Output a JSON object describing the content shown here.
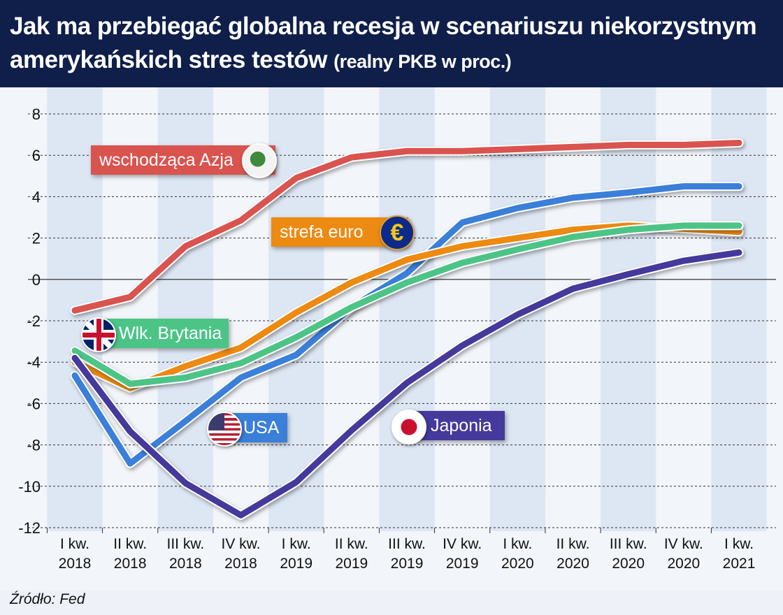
{
  "header": {
    "title": "Jak ma przebiegać globalna recesja w scenariuszu niekorzystnym amerykańskich stres testów",
    "subtitle": "(realny PKB w proc.)"
  },
  "source": "Źródło: Fed",
  "chart_data": {
    "type": "line",
    "title": "Jak ma przebiegać globalna recesja w scenariuszu niekorzystnym amerykańskich stres testów",
    "subtitle": "(realny PKB w proc.)",
    "ylim": [
      -12,
      8
    ],
    "yticks": [
      8,
      6,
      4,
      2,
      0,
      -2,
      -4,
      -6,
      -8,
      -10,
      -12
    ],
    "grid": true,
    "categories": [
      [
        "I kw.",
        "2018"
      ],
      [
        "II kw.",
        "2018"
      ],
      [
        "III kw.",
        "2018"
      ],
      [
        "IV kw.",
        "2018"
      ],
      [
        "I kw.",
        "2019"
      ],
      [
        "II kw.",
        "2019"
      ],
      [
        "III kw.",
        "2019"
      ],
      [
        "IV kw.",
        "2019"
      ],
      [
        "I kw.",
        "2020"
      ],
      [
        "II kw.",
        "2020"
      ],
      [
        "III kw.",
        "2020"
      ],
      [
        "IV kw.",
        "2020"
      ],
      [
        "I kw.",
        "2021"
      ]
    ],
    "series": [
      {
        "name": "wschodząca Azja",
        "color": "#d9534f",
        "icon": "asia-globe-icon",
        "values": [
          -1.5,
          -0.85,
          1.6,
          2.85,
          4.9,
          5.9,
          6.2,
          6.2,
          6.3,
          6.4,
          6.5,
          6.5,
          6.6
        ]
      },
      {
        "name": "USA",
        "color": "#3a7fd9",
        "icon": "us-flag-icon",
        "values": [
          -4.65,
          -8.9,
          -6.85,
          -4.75,
          -3.65,
          -1.35,
          0.3,
          2.75,
          3.45,
          3.95,
          4.2,
          4.5,
          4.5
        ]
      },
      {
        "name": "strefa euro",
        "color": "#ec8a12",
        "icon": "euro-icon",
        "values": [
          -4.0,
          -5.25,
          -4.2,
          -3.3,
          -1.6,
          -0.15,
          0.95,
          1.6,
          2.0,
          2.4,
          2.6,
          2.45,
          2.3
        ]
      },
      {
        "name": "Wlk. Brytania",
        "color": "#4cc486",
        "icon": "uk-flag-icon",
        "values": [
          -3.45,
          -5.05,
          -4.75,
          -4.05,
          -2.8,
          -1.35,
          -0.15,
          0.8,
          1.45,
          2.05,
          2.4,
          2.6,
          2.6
        ]
      },
      {
        "name": "Japonia",
        "color": "#45399c",
        "icon": "japan-flag-icon",
        "values": [
          -3.8,
          -7.35,
          -9.85,
          -11.4,
          -9.8,
          -7.3,
          -5.0,
          -3.2,
          -1.7,
          -0.45,
          0.25,
          0.9,
          1.3
        ]
      }
    ]
  }
}
